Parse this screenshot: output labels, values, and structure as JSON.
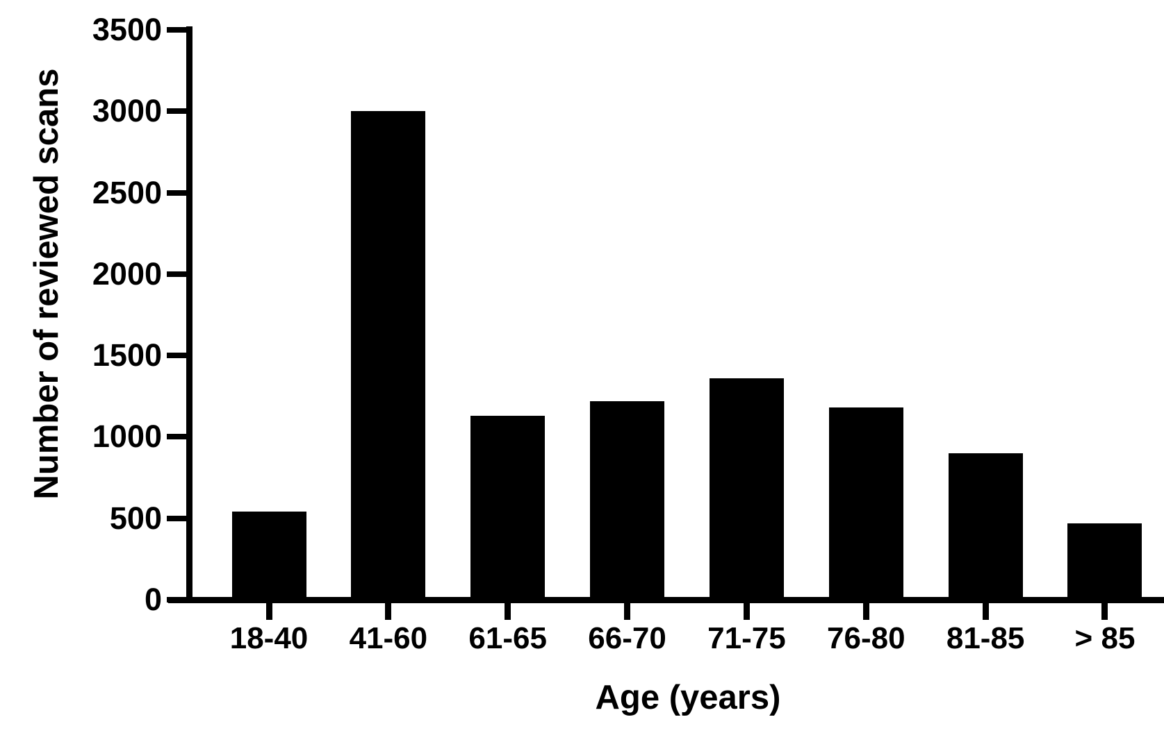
{
  "chart_data": {
    "type": "bar",
    "title": "",
    "xlabel": "Age (years)",
    "ylabel": "Number of reviewed scans",
    "categories": [
      "18-40",
      "41-60",
      "61-65",
      "66-70",
      "71-75",
      "76-80",
      "81-85",
      "> 85"
    ],
    "values": [
      540,
      3000,
      1130,
      1220,
      1360,
      1180,
      900,
      470
    ],
    "yticks": [
      0,
      500,
      1000,
      1500,
      2000,
      2500,
      3000,
      3500
    ],
    "ylim": [
      0,
      3500
    ],
    "bar_color": "#000000",
    "axis_color": "#000000",
    "background_color": "#ffffff",
    "grid": false,
    "legend": null
  }
}
